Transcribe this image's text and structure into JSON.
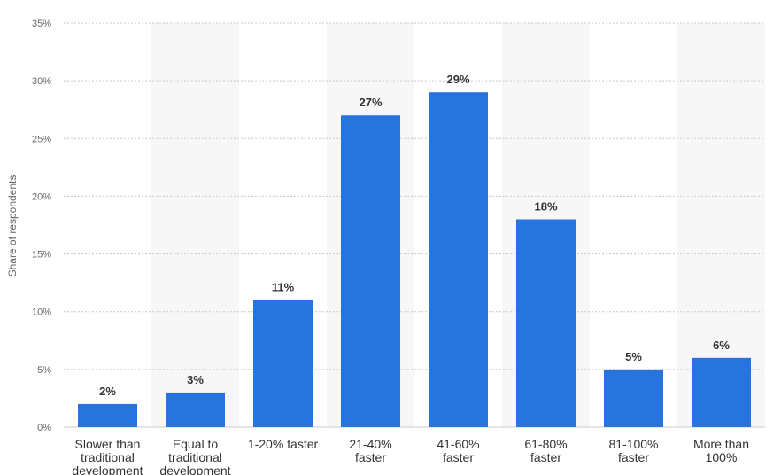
{
  "chart_data": {
    "type": "bar",
    "ylabel": "Share of respondents",
    "xlabel": "",
    "title": "",
    "ylim": [
      0,
      35
    ],
    "yticks": [
      0,
      5,
      10,
      15,
      20,
      25,
      30,
      35
    ],
    "ytick_labels": [
      "0%",
      "5%",
      "10%",
      "15%",
      "20%",
      "25%",
      "30%",
      "35%"
    ],
    "grid": true,
    "bar_color": "#2874de",
    "categories": [
      "Slower than traditional development",
      "Equal to traditional development",
      "1-20% faster",
      "21-40% faster",
      "41-60% faster",
      "61-80% faster",
      "81-100% faster",
      "More than 100%"
    ],
    "category_lines": [
      [
        "Slower than",
        "traditional",
        "development"
      ],
      [
        "Equal to",
        "traditional",
        "development"
      ],
      [
        "1-20% faster"
      ],
      [
        "21-40%",
        "faster"
      ],
      [
        "41-60%",
        "faster"
      ],
      [
        "61-80%",
        "faster"
      ],
      [
        "81-100%",
        "faster"
      ],
      [
        "More than",
        "100%"
      ]
    ],
    "values": [
      2,
      3,
      11,
      27,
      29,
      18,
      5,
      6
    ],
    "data_labels": [
      "2%",
      "3%",
      "11%",
      "27%",
      "29%",
      "18%",
      "5%",
      "6%"
    ]
  }
}
